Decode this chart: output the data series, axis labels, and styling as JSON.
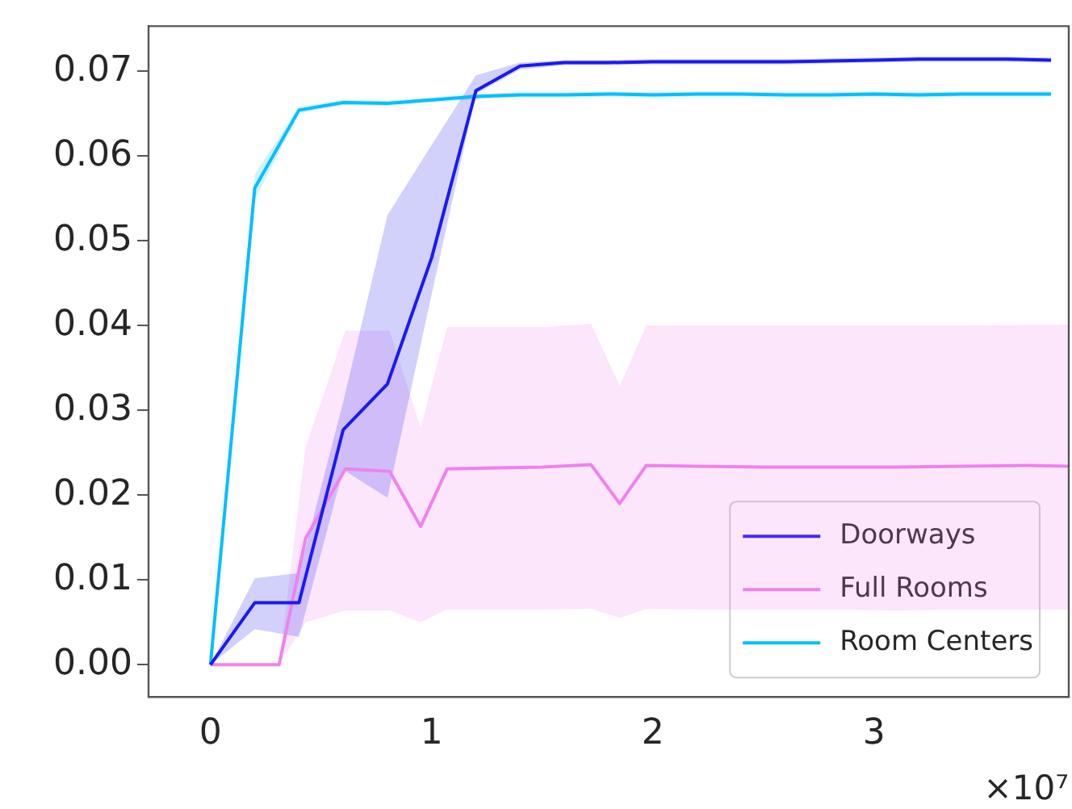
{
  "chart_data": {
    "type": "line",
    "x": [
      0,
      0.2,
      0.4,
      0.6,
      0.8,
      1,
      1.2,
      1.4,
      1.6,
      1.8,
      2,
      2.2,
      2.4,
      2.6,
      2.8,
      3,
      3.2,
      3.4,
      3.6,
      3.8
    ],
    "series": [
      {
        "name": "Doorways",
        "color": "#1a1af0",
        "values": [
          0,
          0.0073,
          0.0073,
          0.0277,
          0.0331,
          0.048,
          0.0677,
          0.0706,
          0.071,
          0.071,
          0.0711,
          0.0711,
          0.0711,
          0.0711,
          0.0712,
          0.0713,
          0.0714,
          0.0714,
          0.0714,
          0.0713
        ],
        "lower": [
          0,
          0.0042,
          0.0033,
          0.023,
          0.0197,
          0.0437,
          0.0673,
          0.0702,
          0.0707,
          0.0707,
          0.0708,
          0.0708,
          0.0708,
          0.0708,
          0.0709,
          0.071,
          0.0711,
          0.0711,
          0.0711,
          0.071
        ],
        "upper": [
          0,
          0.0102,
          0.0108,
          0.031,
          0.053,
          0.0613,
          0.0695,
          0.071,
          0.0713,
          0.0713,
          0.0714,
          0.0714,
          0.0714,
          0.0714,
          0.0715,
          0.0716,
          0.0717,
          0.0717,
          0.0717,
          0.0716
        ]
      },
      {
        "name": "Full Rooms",
        "color": "#ee82ee",
        "x": [
          0,
          0.31,
          0.43,
          0.61,
          0.81,
          0.95,
          1.07,
          1.3,
          1.5,
          1.72,
          1.85,
          1.97,
          2.2,
          2.5,
          2.8,
          3.1,
          3.4,
          3.7,
          3.88
        ],
        "values": [
          0,
          0,
          0.0149,
          0.0231,
          0.0228,
          0.0163,
          0.0231,
          0.0232,
          0.0233,
          0.0236,
          0.019,
          0.0235,
          0.0234,
          0.0233,
          0.0233,
          0.0233,
          0.0234,
          0.0235,
          0.0234
        ],
        "lower": [
          0,
          0,
          0.005,
          0.0064,
          0.0064,
          0.005,
          0.0065,
          0.0065,
          0.0065,
          0.0066,
          0.0055,
          0.0066,
          0.0065,
          0.0065,
          0.0065,
          0.0064,
          0.0065,
          0.0065,
          0.0065
        ],
        "upper": [
          0,
          0,
          0.0257,
          0.0394,
          0.0394,
          0.028,
          0.0398,
          0.0398,
          0.0398,
          0.0402,
          0.0329,
          0.04,
          0.04,
          0.04,
          0.04,
          0.04,
          0.04,
          0.0401,
          0.0401
        ]
      },
      {
        "name": "Room Centers",
        "color": "#00bfff",
        "values": [
          0,
          0.0562,
          0.0654,
          0.0663,
          0.0662,
          0.0666,
          0.067,
          0.0672,
          0.0672,
          0.0673,
          0.0672,
          0.0673,
          0.0673,
          0.0672,
          0.0672,
          0.0673,
          0.0672,
          0.0673,
          0.0673,
          0.0673
        ],
        "lower": [
          0,
          0.0548,
          0.065,
          0.066,
          0.0659,
          0.0663,
          0.0667,
          0.0669,
          0.0669,
          0.067,
          0.0669,
          0.067,
          0.067,
          0.0669,
          0.0669,
          0.067,
          0.0669,
          0.067,
          0.067,
          0.067
        ],
        "upper": [
          0,
          0.0578,
          0.0658,
          0.0666,
          0.0665,
          0.0669,
          0.0673,
          0.0675,
          0.0675,
          0.0676,
          0.0675,
          0.0676,
          0.0676,
          0.0675,
          0.0675,
          0.0676,
          0.0675,
          0.0676,
          0.0676,
          0.0676
        ]
      }
    ],
    "xlim": [
      -0.28,
      3.88
    ],
    "xticks": [
      0,
      1,
      2,
      3
    ],
    "ylim": [
      -0.0038,
      0.0753
    ],
    "yticks": [
      {
        "value": 0,
        "label": "0.00"
      },
      {
        "value": 0.01,
        "label": "0.01"
      },
      {
        "value": 0.02,
        "label": "0.02"
      },
      {
        "value": 0.03,
        "label": "0.03"
      },
      {
        "value": 0.04,
        "label": "0.04"
      },
      {
        "value": 0.05,
        "label": "0.05"
      },
      {
        "value": 0.06,
        "label": "0.06"
      },
      {
        "value": 0.07,
        "label": "0.07"
      }
    ],
    "annotations": [
      "×10⁷"
    ],
    "legend": "bottom right",
    "grid": false,
    "marker": "none",
    "line_style": "solid"
  }
}
